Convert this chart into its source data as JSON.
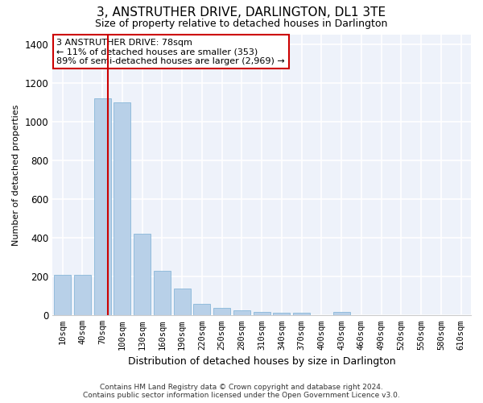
{
  "title": "3, ANSTRUTHER DRIVE, DARLINGTON, DL1 3TE",
  "subtitle": "Size of property relative to detached houses in Darlington",
  "xlabel": "Distribution of detached houses by size in Darlington",
  "ylabel": "Number of detached properties",
  "bar_color": "#b8d0e8",
  "bar_edge_color": "#7aafd4",
  "background_color": "#eef2fa",
  "grid_color": "#ffffff",
  "annotation_line_color": "#cc0000",
  "annotation_box_color": "#cc0000",
  "annotation_line1": "3 ANSTRUTHER DRIVE: 78sqm",
  "annotation_line2": "← 11% of detached houses are smaller (353)",
  "annotation_line3": "89% of semi-detached houses are larger (2,969) →",
  "property_size": 78,
  "categories": [
    "10sqm",
    "40sqm",
    "70sqm",
    "100sqm",
    "130sqm",
    "160sqm",
    "190sqm",
    "220sqm",
    "250sqm",
    "280sqm",
    "310sqm",
    "340sqm",
    "370sqm",
    "400sqm",
    "430sqm",
    "460sqm",
    "490sqm",
    "520sqm",
    "550sqm",
    "580sqm",
    "610sqm"
  ],
  "values": [
    210,
    210,
    1120,
    1100,
    420,
    230,
    140,
    60,
    40,
    25,
    18,
    14,
    13,
    0,
    16,
    0,
    0,
    0,
    0,
    0,
    0
  ],
  "ylim": [
    0,
    1450
  ],
  "yticks": [
    0,
    200,
    400,
    600,
    800,
    1000,
    1200,
    1400
  ],
  "footer_line1": "Contains HM Land Registry data © Crown copyright and database right 2024.",
  "footer_line2": "Contains public sector information licensed under the Open Government Licence v3.0."
}
